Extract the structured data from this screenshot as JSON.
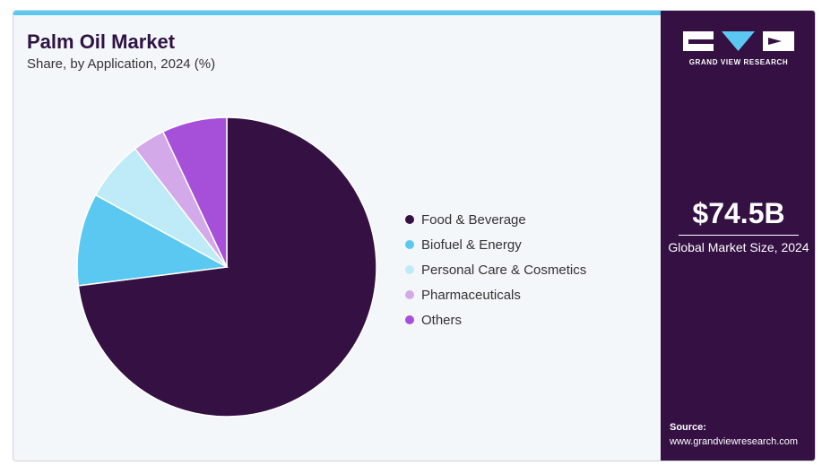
{
  "header": {
    "title": "Palm Oil Market",
    "subtitle": "Share, by Application, 2024 (%)"
  },
  "chart_data": {
    "type": "pie",
    "categories": [
      "Food & Beverage",
      "Biofuel & Energy",
      "Personal Care & Cosmetics",
      "Pharmaceuticals",
      "Others"
    ],
    "values": [
      73,
      10,
      6.5,
      3.5,
      7
    ],
    "colors": [
      "#341043",
      "#5bc8f2",
      "#bfeaf8",
      "#d3a9ea",
      "#a64fd8"
    ],
    "legend_position": "right"
  },
  "sidebar": {
    "logo_text": "GRAND VIEW RESEARCH",
    "market_size_value": "$74.5B",
    "market_size_label": "Global Market Size, 2024",
    "source_label": "Source:",
    "source_url": "www.grandviewresearch.com"
  }
}
